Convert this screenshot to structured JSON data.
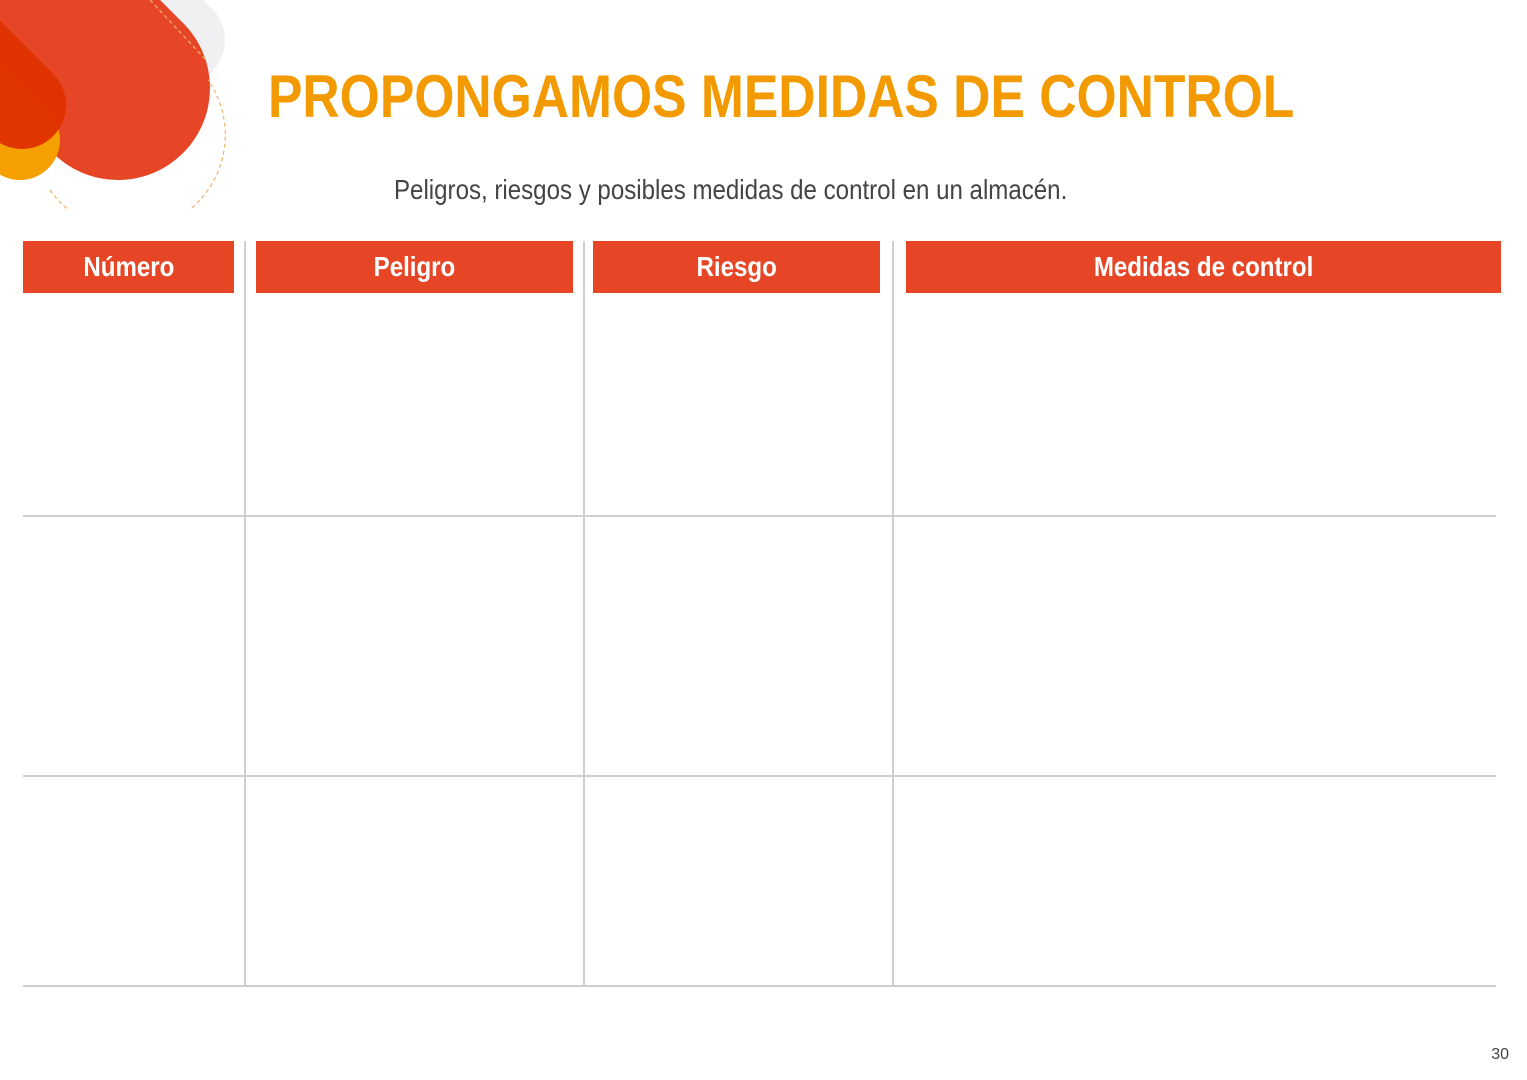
{
  "title": "PROPONGAMOS MEDIDAS DE CONTROL",
  "subtitle": "Peligros, riesgos y posibles medidas de control en un almacén.",
  "table": {
    "headers": [
      "Número",
      "Peligro",
      "Riesgo",
      "Medidas de control"
    ],
    "rows": [
      [
        "",
        "",
        "",
        ""
      ],
      [
        "",
        "",
        "",
        ""
      ],
      [
        "",
        "",
        "",
        ""
      ]
    ]
  },
  "page_number": "30",
  "colors": {
    "title": "#f29a00",
    "header": "#e64626",
    "accent_dark": "#e03000",
    "accent_yellow": "#f5a000"
  }
}
